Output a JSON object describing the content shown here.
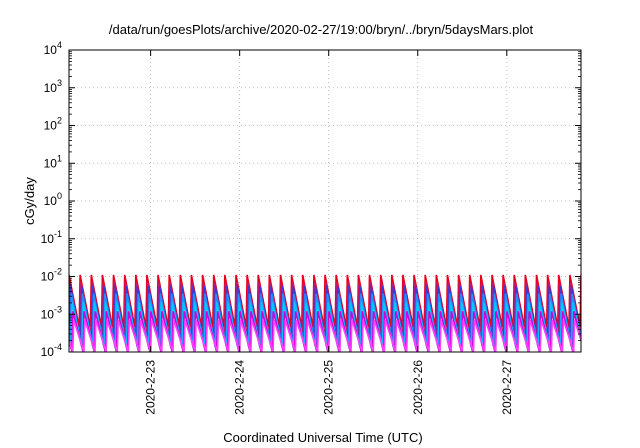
{
  "chart_data": {
    "type": "line",
    "title": "/data/run/goesPlots/archive/2020-02-27/19:00/bryn/../bryn/5daysMars.plot",
    "xlabel": "Coordinated Universal Time (UTC)",
    "ylabel": "cGy/day",
    "y_scale": "log",
    "ylim": [
      0.0001,
      10000
    ],
    "xlim": [
      "2020-02-22 02:00",
      "2020-02-27 20:00"
    ],
    "grid": true,
    "x_ticks": [
      "2020-2-23",
      "2020-2-24",
      "2020-2-25",
      "2020-2-26",
      "2020-2-27"
    ],
    "y_ticks": [
      {
        "base": "10",
        "exp": "4"
      },
      {
        "base": "10",
        "exp": "3"
      },
      {
        "base": "10",
        "exp": "2"
      },
      {
        "base": "10",
        "exp": "1"
      },
      {
        "base": "10",
        "exp": "0"
      },
      {
        "base": "10",
        "exp": "-1"
      },
      {
        "base": "10",
        "exp": "-2"
      },
      {
        "base": "10",
        "exp": "-3"
      },
      {
        "base": "10",
        "exp": "-4"
      }
    ],
    "sawtooth": {
      "period_hours": 3,
      "description_of_series": "repeating sawtooth dose-rate traces"
    },
    "series": [
      {
        "color": "#e8001c",
        "peak": 0.011,
        "trough": 0.00045
      },
      {
        "color": "#c0186e",
        "peak": 0.007,
        "trough": 0.00025
      },
      {
        "color": "#3a3ad8",
        "peak": 0.0055,
        "trough": 0.00018
      },
      {
        "color": "#1e90ff",
        "peak": 0.0035,
        "trough": 0.00014
      },
      {
        "color": "#00c8ff",
        "peak": 0.002,
        "trough": 0.00012
      },
      {
        "color": "#d000d8",
        "peak": 0.0012,
        "trough": 0.0001
      },
      {
        "color": "#ff40ff",
        "peak": 0.0007,
        "trough": 0.0001
      }
    ]
  }
}
